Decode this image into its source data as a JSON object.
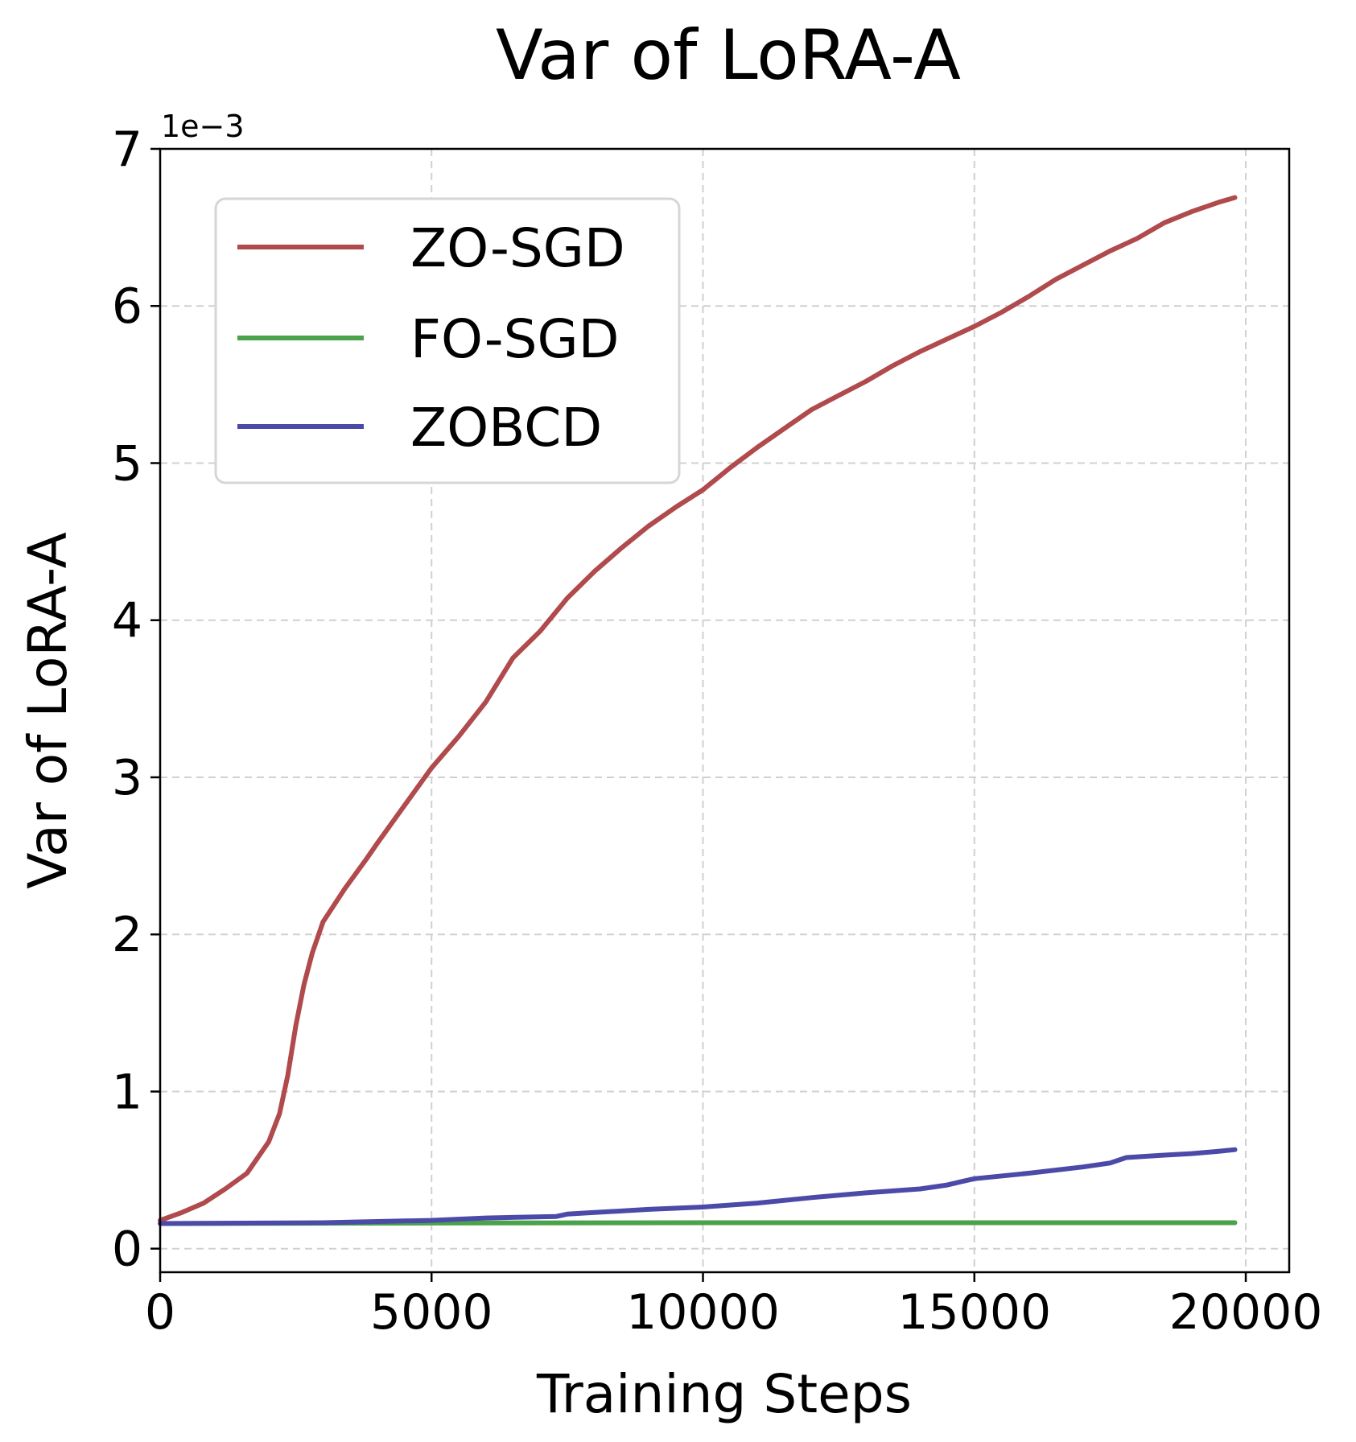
{
  "chart_data": {
    "type": "line",
    "title": "Var of LoRA-A",
    "xlabel": "Training Steps",
    "ylabel": "Var of LoRA-A",
    "y_offset_label": "1e−3",
    "xlim": [
      0,
      20800
    ],
    "ylim": [
      -0.15,
      7.0
    ],
    "xticks": [
      0,
      5000,
      10000,
      15000,
      20000
    ],
    "xtick_labels": [
      "0",
      "5000",
      "10000",
      "15000",
      "20000"
    ],
    "yticks": [
      0,
      1,
      2,
      3,
      4,
      5,
      6,
      7
    ],
    "ytick_labels": [
      "0",
      "1",
      "2",
      "3",
      "4",
      "5",
      "6",
      "7"
    ],
    "grid": true,
    "legend_position": "upper-left",
    "series": [
      {
        "name": "ZO-SGD",
        "color": "#b04a4c",
        "points": [
          [
            0,
            0.18
          ],
          [
            400,
            0.23
          ],
          [
            800,
            0.29
          ],
          [
            1200,
            0.38
          ],
          [
            1600,
            0.48
          ],
          [
            2000,
            0.68
          ],
          [
            2200,
            0.86
          ],
          [
            2350,
            1.1
          ],
          [
            2500,
            1.42
          ],
          [
            2650,
            1.68
          ],
          [
            2800,
            1.88
          ],
          [
            3000,
            2.08
          ],
          [
            3400,
            2.29
          ],
          [
            3800,
            2.48
          ],
          [
            4000,
            2.58
          ],
          [
            4500,
            2.82
          ],
          [
            5000,
            3.06
          ],
          [
            5500,
            3.26
          ],
          [
            6000,
            3.48
          ],
          [
            6500,
            3.76
          ],
          [
            7000,
            3.93
          ],
          [
            7500,
            4.14
          ],
          [
            8000,
            4.31
          ],
          [
            8500,
            4.46
          ],
          [
            9000,
            4.6
          ],
          [
            9500,
            4.72
          ],
          [
            10000,
            4.83
          ],
          [
            10500,
            4.97
          ],
          [
            11000,
            5.1
          ],
          [
            11500,
            5.22
          ],
          [
            12000,
            5.34
          ],
          [
            12500,
            5.43
          ],
          [
            13000,
            5.52
          ],
          [
            13500,
            5.62
          ],
          [
            14000,
            5.71
          ],
          [
            14500,
            5.79
          ],
          [
            15000,
            5.87
          ],
          [
            15500,
            5.96
          ],
          [
            16000,
            6.06
          ],
          [
            16500,
            6.17
          ],
          [
            17000,
            6.26
          ],
          [
            17500,
            6.35
          ],
          [
            18000,
            6.43
          ],
          [
            18500,
            6.53
          ],
          [
            19000,
            6.6
          ],
          [
            19500,
            6.66
          ],
          [
            19800,
            6.69
          ]
        ]
      },
      {
        "name": "FO-SGD",
        "color": "#4aa34a",
        "points": [
          [
            0,
            0.16
          ],
          [
            5000,
            0.163
          ],
          [
            10000,
            0.165
          ],
          [
            15000,
            0.165
          ],
          [
            19800,
            0.165
          ]
        ]
      },
      {
        "name": "ZOBCD",
        "color": "#4b4aa8",
        "points": [
          [
            0,
            0.16
          ],
          [
            3000,
            0.165
          ],
          [
            5000,
            0.18
          ],
          [
            6000,
            0.195
          ],
          [
            7300,
            0.205
          ],
          [
            7500,
            0.22
          ],
          [
            8000,
            0.23
          ],
          [
            9000,
            0.25
          ],
          [
            10000,
            0.265
          ],
          [
            11000,
            0.29
          ],
          [
            12000,
            0.325
          ],
          [
            13000,
            0.355
          ],
          [
            14000,
            0.38
          ],
          [
            14500,
            0.405
          ],
          [
            14800,
            0.43
          ],
          [
            15000,
            0.445
          ],
          [
            16000,
            0.48
          ],
          [
            17000,
            0.52
          ],
          [
            17500,
            0.545
          ],
          [
            17800,
            0.58
          ],
          [
            18500,
            0.595
          ],
          [
            19000,
            0.605
          ],
          [
            19500,
            0.62
          ],
          [
            19800,
            0.63
          ]
        ]
      }
    ]
  }
}
